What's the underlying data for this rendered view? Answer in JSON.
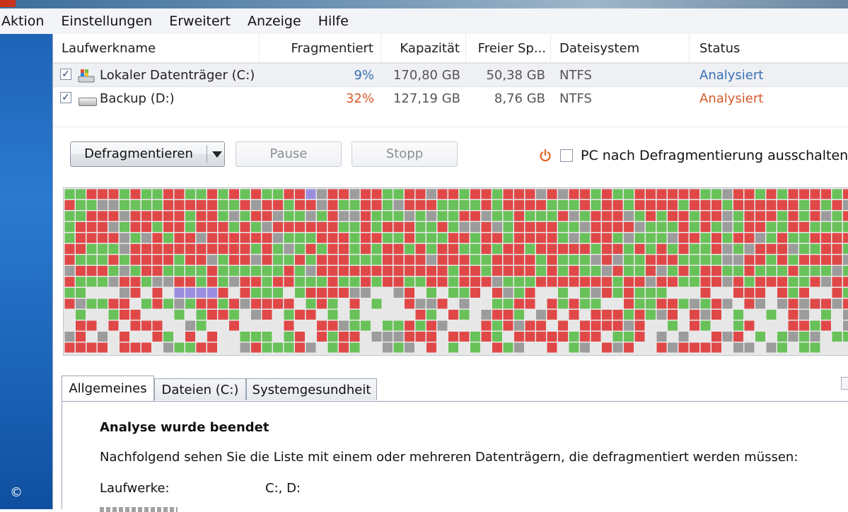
{
  "menu": {
    "items": [
      "Aktion",
      "Einstellungen",
      "Erweitert",
      "Anzeige",
      "Hilfe"
    ]
  },
  "drive_list": {
    "columns": [
      "Laufwerkname",
      "Fragmentiert",
      "Kapazität",
      "Freier Sp...",
      "Dateisystem",
      "Status"
    ],
    "rows": [
      {
        "checked": true,
        "name": "Lokaler Datenträger (C:)",
        "fragmented": "9%",
        "capacity": "170,80 GB",
        "free": "50,38 GB",
        "filesystem": "NTFS",
        "status": "Analysiert"
      },
      {
        "checked": true,
        "name": "Backup (D:)",
        "fragmented": "32%",
        "capacity": "127,19 GB",
        "free": "8,76 GB",
        "filesystem": "NTFS",
        "status": "Analysiert"
      }
    ]
  },
  "toolbar": {
    "defrag_label": "Defragmentieren",
    "pause_label": "Pause",
    "stop_label": "Stopp",
    "shutdown_label": "PC nach Defragmentierung ausschalten",
    "shutdown_checked": false
  },
  "cluster_map": {
    "colors": {
      "fragmented": "#e04848",
      "contiguous": "#69c159",
      "system": "#9c9c9c",
      "free": "#e7e7e7",
      "unmovable": "#9b8ee0"
    }
  },
  "tabs": [
    {
      "label": "Allgemeines",
      "active": true
    },
    {
      "label": "Dateien (C:)",
      "active": false
    },
    {
      "label": "Systemgesundheit",
      "active": false
    }
  ],
  "panel": {
    "title": "Analyse wurde beendet",
    "description": "Nachfolgend sehen Sie die Liste mit einem oder mehreren Datenträgern, die defragmentiert werden müssen:",
    "drives_label": "Laufwerke:",
    "drives_value": "C:, D:"
  },
  "copyright_symbol": "©",
  "colors": {
    "status_ok": "#3a6fb5",
    "status_warn": "#d7582a"
  }
}
